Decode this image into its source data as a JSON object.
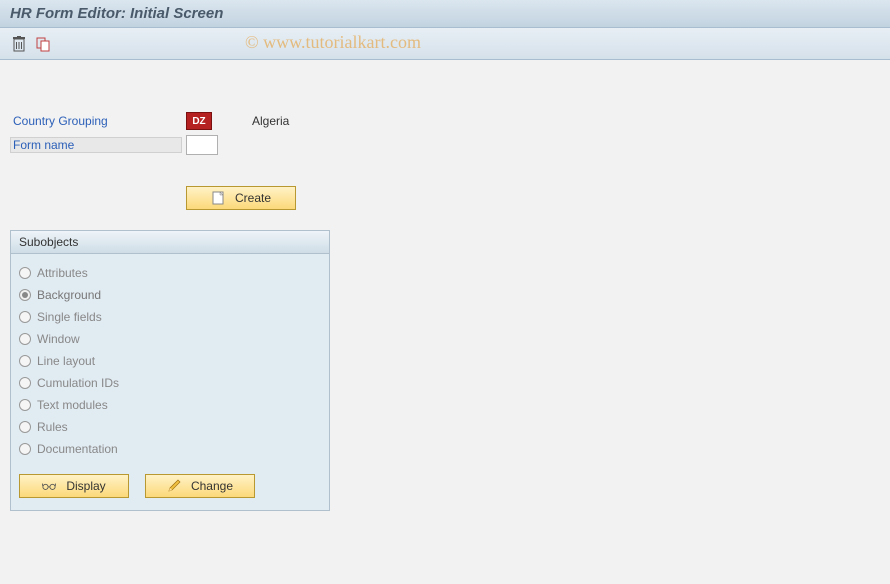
{
  "header": {
    "title": "HR Form Editor: Initial Screen"
  },
  "toolbar": {
    "delete_icon": "delete",
    "copy_icon": "copy"
  },
  "watermark": "© www.tutorialkart.com",
  "fields": {
    "country_grouping": {
      "label": "Country Grouping",
      "code": "DZ",
      "name": "Algeria"
    },
    "form_name": {
      "label": "Form name",
      "value": ""
    }
  },
  "buttons": {
    "create": "Create",
    "display": "Display",
    "change": "Change"
  },
  "subobjects": {
    "title": "Subobjects",
    "selected": "Background",
    "items": [
      "Attributes",
      "Background",
      "Single fields",
      "Window",
      "Line layout",
      "Cumulation IDs",
      "Text modules",
      "Rules",
      "Documentation"
    ]
  },
  "colors": {
    "header_bg_top": "#dbe6ef",
    "header_bg_bottom": "#c2d3e0",
    "button_bg_top": "#fff2c6",
    "button_bg_bottom": "#fcd97a",
    "group_bg": "#e1ebf2",
    "link_color": "#2b5fb8",
    "country_badge": "#b52020"
  }
}
